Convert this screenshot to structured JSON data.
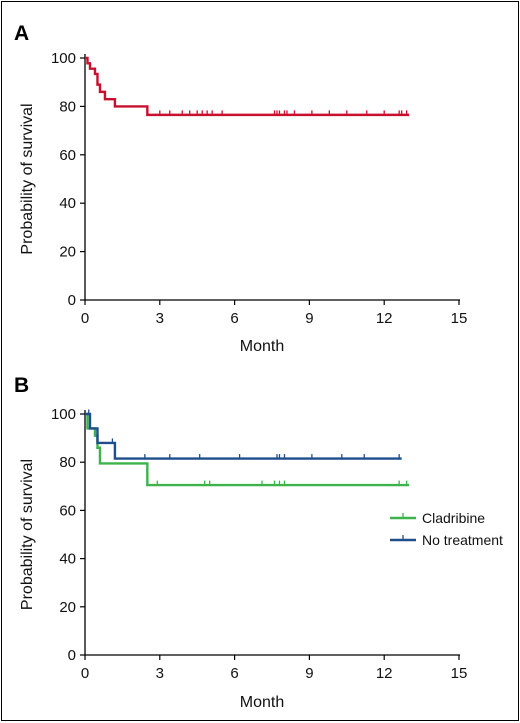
{
  "chart_data": [
    {
      "panel_label": "A",
      "type": "line",
      "style": "step",
      "xlabel": "Month",
      "ylabel": "Probability of survival",
      "xlim": [
        0,
        15
      ],
      "ylim": [
        0,
        100
      ],
      "xticks": [
        0,
        3,
        6,
        9,
        12,
        15
      ],
      "yticks": [
        0,
        20,
        40,
        60,
        80,
        100
      ],
      "grid": false,
      "legend": null,
      "series": [
        {
          "color": "#c8102e",
          "steps": [
            [
              0,
              100
            ],
            [
              0.1,
              97.8
            ],
            [
              0.2,
              95.6
            ],
            [
              0.4,
              93.4
            ],
            [
              0.5,
              89
            ],
            [
              0.6,
              86
            ],
            [
              0.8,
              83
            ],
            [
              1.2,
              80
            ],
            [
              2.5,
              76.5
            ],
            [
              13,
              76.5
            ]
          ],
          "censored": [
            [
              2.5,
              78
            ],
            [
              3.0,
              76.5
            ],
            [
              3.4,
              76.5
            ],
            [
              3.9,
              76.5
            ],
            [
              4.2,
              76.5
            ],
            [
              4.5,
              76.5
            ],
            [
              4.7,
              76.5
            ],
            [
              4.9,
              76.5
            ],
            [
              5.1,
              76.5
            ],
            [
              5.5,
              76.5
            ],
            [
              7.6,
              76.5
            ],
            [
              7.7,
              76.5
            ],
            [
              7.8,
              76.5
            ],
            [
              8.0,
              76.5
            ],
            [
              8.1,
              76.5
            ],
            [
              8.4,
              76.5
            ],
            [
              9.1,
              76.5
            ],
            [
              9.8,
              76.5
            ],
            [
              10.5,
              76.5
            ],
            [
              11.3,
              76.5
            ],
            [
              12.0,
              76.5
            ],
            [
              12.6,
              76.5
            ],
            [
              12.7,
              76.5
            ],
            [
              12.9,
              76.5
            ]
          ]
        }
      ]
    },
    {
      "panel_label": "B",
      "type": "line",
      "style": "step",
      "xlabel": "Month",
      "ylabel": "Probability of survival",
      "xlim": [
        0,
        15
      ],
      "ylim": [
        0,
        100
      ],
      "xticks": [
        0,
        3,
        6,
        9,
        12,
        15
      ],
      "yticks": [
        0,
        20,
        40,
        60,
        80,
        100
      ],
      "grid": false,
      "legend": "right",
      "series": [
        {
          "name": "Cladribine",
          "color": "#3cb44b",
          "steps": [
            [
              0,
              100
            ],
            [
              0.1,
              94
            ],
            [
              0.4,
              91
            ],
            [
              0.5,
              86
            ],
            [
              0.6,
              79.5
            ],
            [
              2.5,
              79.5
            ],
            [
              2.5,
              70.5
            ],
            [
              13,
              70.5
            ]
          ],
          "censored": [
            [
              2.9,
              70.5
            ],
            [
              4.8,
              70.5
            ],
            [
              5.0,
              70.5
            ],
            [
              7.1,
              70.5
            ],
            [
              7.6,
              70.5
            ],
            [
              7.8,
              70.5
            ],
            [
              8.0,
              70.5
            ],
            [
              12.6,
              70.5
            ],
            [
              12.9,
              70.5
            ]
          ]
        },
        {
          "name": "No treatment",
          "color": "#1f4e8c",
          "steps": [
            [
              0,
              100
            ],
            [
              0.2,
              94
            ],
            [
              0.5,
              88
            ],
            [
              1.2,
              88
            ],
            [
              1.2,
              81.5
            ],
            [
              12.7,
              81.5
            ]
          ],
          "censored": [
            [
              0.15,
              100
            ],
            [
              1.1,
              88
            ],
            [
              2.4,
              81.5
            ],
            [
              3.4,
              81.5
            ],
            [
              4.6,
              81.5
            ],
            [
              6.2,
              81.5
            ],
            [
              7.7,
              81.5
            ],
            [
              7.8,
              81.5
            ],
            [
              8.0,
              81.5
            ],
            [
              9.1,
              81.5
            ],
            [
              10.3,
              81.5
            ],
            [
              11.2,
              81.5
            ],
            [
              12.6,
              81.5
            ]
          ]
        }
      ]
    }
  ]
}
